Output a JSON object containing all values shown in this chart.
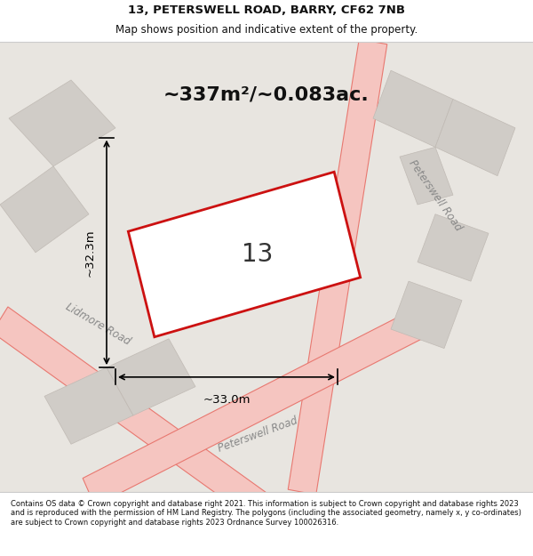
{
  "title_line1": "13, PETERSWELL ROAD, BARRY, CF62 7NB",
  "title_line2": "Map shows position and indicative extent of the property.",
  "area_text": "~337m²/~0.083ac.",
  "dim_width": "~33.0m",
  "dim_height": "~32.3m",
  "property_number": "13",
  "road1": "Peterswell Road",
  "road2": "Lidmore Road",
  "road3": "Peterswell Road",
  "footer": "Contains OS data © Crown copyright and database right 2021. This information is subject to Crown copyright and database rights 2023 and is reproduced with the permission of HM Land Registry. The polygons (including the associated geometry, namely x, y co-ordinates) are subject to Crown copyright and database rights 2023 Ordnance Survey 100026316.",
  "bg_color": "#f0eeeb",
  "map_bg": "#e8e5e0",
  "road_color": "#f5c5c0",
  "road_line_color": "#e87870",
  "plot_edge_color": "#cc1111",
  "plot_fill": "#ffffff",
  "annotation_color": "#111111",
  "title_color": "#111111",
  "footer_color": "#111111"
}
